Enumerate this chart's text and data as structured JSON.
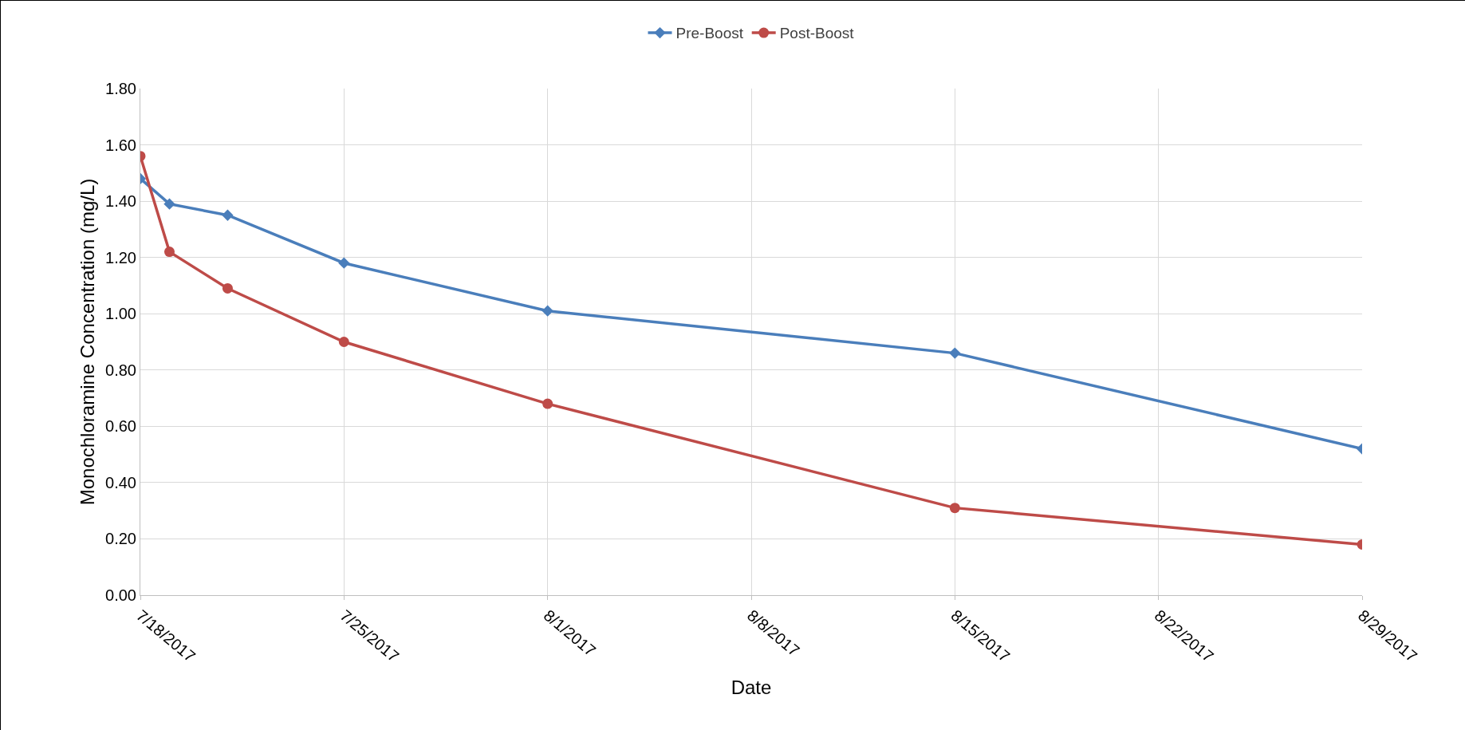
{
  "chart_data": {
    "type": "line",
    "xlabel": "Date",
    "ylabel": "Monochloramine Concentration (mg/L)",
    "x": [
      "2017-07-18",
      "2017-07-19",
      "2017-07-21",
      "2017-07-25",
      "2017-08-01",
      "2017-08-15",
      "2017-08-29"
    ],
    "series": [
      {
        "name": "Pre-Boost",
        "color": "#4a7ebb",
        "marker": "diamond",
        "values": [
          1.48,
          1.39,
          1.35,
          1.18,
          1.01,
          0.86,
          0.52
        ]
      },
      {
        "name": "Post-Boost",
        "color": "#be4b48",
        "marker": "circle",
        "values": [
          1.56,
          1.22,
          1.09,
          0.9,
          0.68,
          0.31,
          0.18
        ]
      }
    ],
    "xlim": [
      "2017-07-18",
      "2017-08-29"
    ],
    "xticks": [
      {
        "value": "2017-07-18",
        "label": "7/18/2017"
      },
      {
        "value": "2017-07-25",
        "label": "7/25/2017"
      },
      {
        "value": "2017-08-01",
        "label": "8/1/2017"
      },
      {
        "value": "2017-08-08",
        "label": "8/8/2017"
      },
      {
        "value": "2017-08-15",
        "label": "8/15/2017"
      },
      {
        "value": "2017-08-22",
        "label": "8/22/2017"
      },
      {
        "value": "2017-08-29",
        "label": "8/29/2017"
      }
    ],
    "ylim": [
      0,
      1.8
    ],
    "yticks": [
      {
        "value": 0,
        "label": "0.00"
      },
      {
        "value": 0.2,
        "label": "0.20"
      },
      {
        "value": 0.4,
        "label": "0.40"
      },
      {
        "value": 0.6,
        "label": "0.60"
      },
      {
        "value": 0.8,
        "label": "0.80"
      },
      {
        "value": 1,
        "label": "1.00"
      },
      {
        "value": 1.2,
        "label": "1.20"
      },
      {
        "value": 1.4,
        "label": "1.40"
      },
      {
        "value": 1.6,
        "label": "1.60"
      },
      {
        "value": 1.8,
        "label": "1.80"
      }
    ],
    "grid": true,
    "legend": "top",
    "line_style": "solid"
  }
}
